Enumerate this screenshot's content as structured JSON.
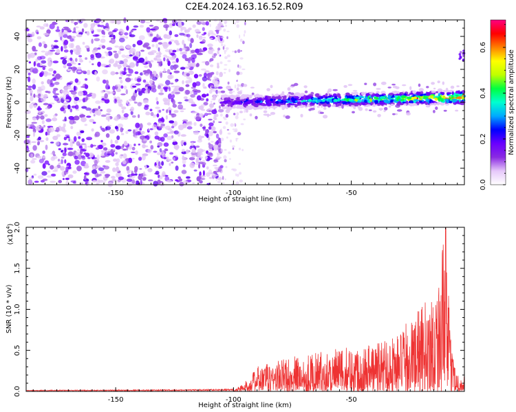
{
  "title": "C2E4.2024.163.16.52.R09",
  "chart_data": [
    {
      "type": "heatmap",
      "xlabel": "Height of straight line (km)",
      "ylabel": "Frequency (Hz)",
      "xlim": [
        -188,
        -2
      ],
      "ylim": [
        -50,
        50
      ],
      "xticks": [
        -150,
        -100,
        -50
      ],
      "yticks": [
        -40,
        -20,
        0,
        20,
        40
      ],
      "colorbar": {
        "label": "Normalized spectral amplitude",
        "range": [
          0.0,
          0.72
        ],
        "ticks": [
          0.0,
          0.2,
          0.4,
          0.6
        ],
        "colormap": [
          "#ffffff",
          "#e6c8fa",
          "#8a2be2",
          "#6a00ff",
          "#0000ff",
          "#00aaff",
          "#00ffd0",
          "#00ff40",
          "#c0ff00",
          "#ffff00",
          "#ff8000",
          "#ff0000",
          "#ff0080"
        ]
      },
      "noise_region": {
        "x": [
          -188,
          -105
        ],
        "y": [
          -50,
          50
        ]
      },
      "transition_region": {
        "x": [
          -110,
          -95
        ],
        "y": [
          -50,
          50
        ]
      },
      "signal_band": {
        "x": [
          -105,
          -2
        ],
        "center_y": [
          0,
          3
        ],
        "half_width_hz": 4
      },
      "sparse_high_freq_feature": {
        "x": [
          -4,
          -2
        ],
        "y": [
          25,
          32
        ]
      }
    },
    {
      "type": "line",
      "xlabel": "Height of straight line (km)",
      "ylabel": "SNR (10 * v/v)",
      "yscale_label": "(x10",
      "yscale_exponent": "4",
      "xlim": [
        -188,
        -2
      ],
      "ylim": [
        0,
        2.0
      ],
      "xticks": [
        -150,
        -100,
        -50
      ],
      "yticks": [
        0.0,
        0.5,
        1.0,
        1.5,
        2.0
      ],
      "line_color": "#ee3333",
      "envelope": {
        "x": [
          -188,
          -120,
          -100,
          -95,
          -90,
          -80,
          -70,
          -60,
          -50,
          -40,
          -30,
          -20,
          -15,
          -12,
          -10,
          -8,
          -6,
          -4,
          -2
        ],
        "y": [
          0.01,
          0.015,
          0.02,
          0.12,
          0.3,
          0.4,
          0.45,
          0.5,
          0.55,
          0.62,
          0.72,
          1.05,
          1.25,
          1.6,
          2.0,
          0.7,
          0.35,
          0.15,
          0.2
        ]
      }
    }
  ]
}
